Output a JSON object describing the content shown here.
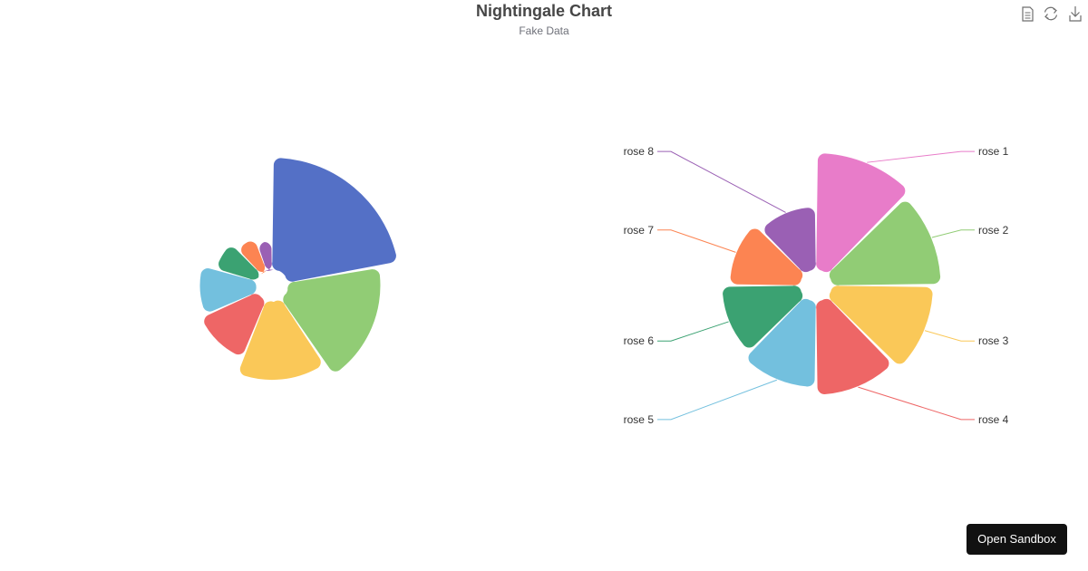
{
  "page": {
    "title": "Nightingale Chart",
    "subtitle": "Fake Data"
  },
  "toolbox": {
    "icons": [
      "data-view-icon",
      "restore-icon",
      "save-image-icon"
    ]
  },
  "sandbox_button": {
    "label": "Open Sandbox"
  },
  "chart_data": [
    {
      "type": "pie",
      "rose_type": "radius",
      "labels_visible": false,
      "categories": [
        "rose 1",
        "rose 2",
        "rose 3",
        "rose 4",
        "rose 5",
        "rose 6",
        "rose 7",
        "rose 8"
      ],
      "values": [
        40,
        33,
        28,
        22,
        20,
        15,
        12,
        10
      ],
      "colors": [
        "#5470c6",
        "#91cc75",
        "#fac858",
        "#ee6666",
        "#73c0de",
        "#3ba272",
        "#fc8452",
        "#9a60b4"
      ]
    },
    {
      "type": "pie",
      "rose_type": "area",
      "labels_visible": true,
      "categories": [
        "rose 1",
        "rose 2",
        "rose 3",
        "rose 4",
        "rose 5",
        "rose 6",
        "rose 7",
        "rose 8"
      ],
      "values": [
        30,
        28,
        26,
        24,
        22,
        20,
        18,
        16
      ],
      "colors": [
        "#e87cc9",
        "#91cc75",
        "#fac858",
        "#ee6666",
        "#73c0de",
        "#3ba272",
        "#fc8452",
        "#9a60b4"
      ]
    }
  ]
}
